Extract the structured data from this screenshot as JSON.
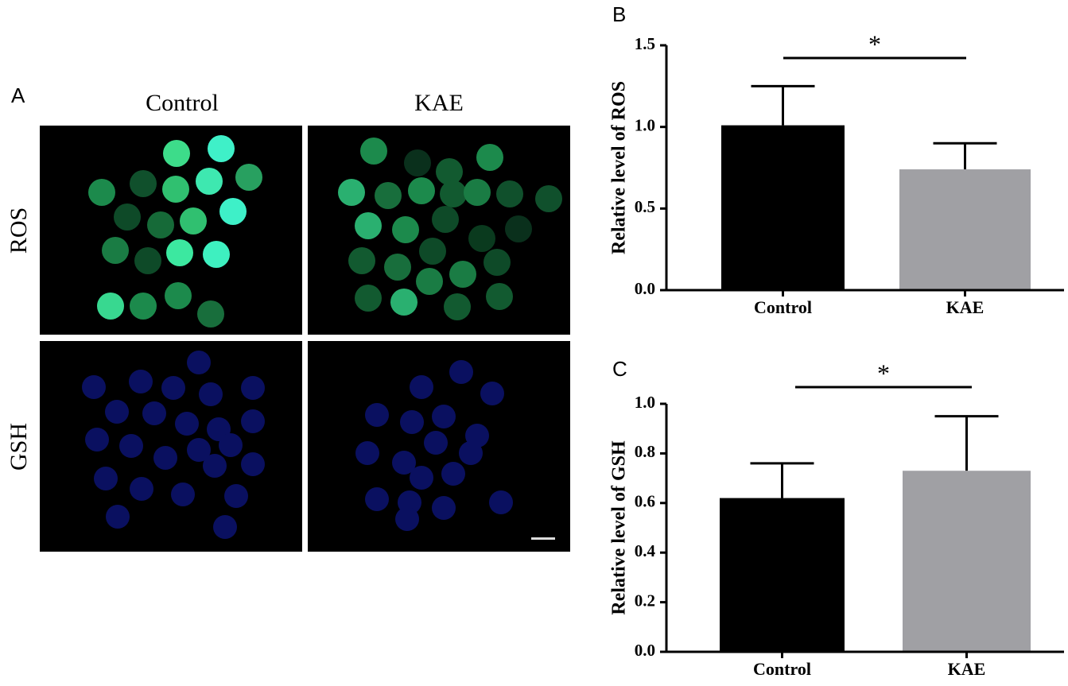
{
  "panel_a": {
    "label": "A",
    "columns": [
      "Control",
      "KAE"
    ],
    "rows": [
      "ROS",
      "GSH"
    ]
  },
  "chart_data": [
    {
      "type": "bar",
      "label": "B",
      "ylabel": "Relative level of ROS",
      "annotation": "*",
      "categories": [
        "Control",
        "KAE"
      ],
      "values": [
        1.01,
        0.74
      ],
      "errors": [
        0.24,
        0.16
      ],
      "colors": [
        "#000000",
        "#a0a0a4"
      ],
      "ylim": [
        0,
        1.5
      ],
      "yticks": [
        {
          "value": 0,
          "label": "0.0"
        },
        {
          "value": 0.5,
          "label": "0.5"
        },
        {
          "value": 1,
          "label": "1.0"
        },
        {
          "value": 1.5,
          "label": "1.5"
        }
      ]
    },
    {
      "type": "bar",
      "label": "C",
      "ylabel": "Relative level of GSH",
      "annotation": "*",
      "categories": [
        "Control",
        "KAE"
      ],
      "values": [
        0.62,
        0.73
      ],
      "errors": [
        0.14,
        0.22
      ],
      "colors": [
        "#000000",
        "#a0a0a4"
      ],
      "ylim": [
        0,
        1.0
      ],
      "yticks": [
        {
          "value": 0,
          "label": "0.0"
        },
        {
          "value": 0.2,
          "label": "0.2"
        },
        {
          "value": 0.4,
          "label": "0.4"
        },
        {
          "value": 0.6,
          "label": "0.6"
        },
        {
          "value": 0.8,
          "label": "0.8"
        },
        {
          "value": 1,
          "label": "1.0"
        }
      ]
    }
  ]
}
